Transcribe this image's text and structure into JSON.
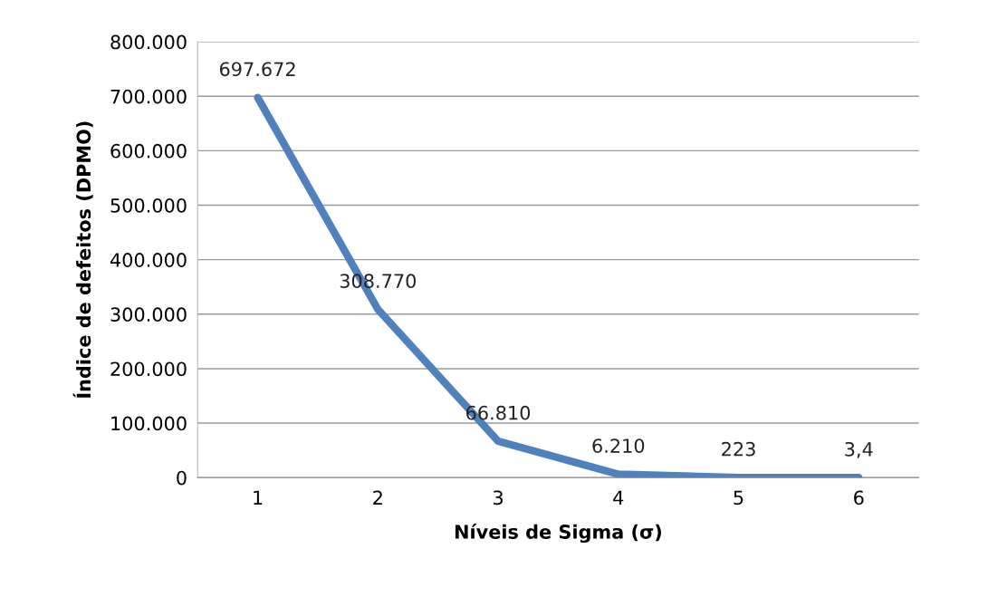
{
  "chart_data": {
    "type": "line",
    "xlabel": "Níveis de Sigma (σ)",
    "ylabel": "Índice de defeitos (DPMO)",
    "categories": [
      "1",
      "2",
      "3",
      "4",
      "5",
      "6"
    ],
    "series": [
      {
        "color": "#4f81bd",
        "values": [
          697672,
          308770,
          66810,
          6210,
          223,
          3.4
        ],
        "value_labels": [
          "697.672",
          "308.770",
          "66.810",
          "6.210",
          "223",
          "3,4"
        ]
      }
    ],
    "ylim": [
      0,
      800000
    ],
    "yticks": [
      {
        "value": 0,
        "label": "0"
      },
      {
        "value": 100000,
        "label": "100.000"
      },
      {
        "value": 200000,
        "label": "200.000"
      },
      {
        "value": 300000,
        "label": "300.000"
      },
      {
        "value": 400000,
        "label": "400.000"
      },
      {
        "value": 500000,
        "label": "500.000"
      },
      {
        "value": 600000,
        "label": "600.000"
      },
      {
        "value": 700000,
        "label": "700.000"
      },
      {
        "value": 800000,
        "label": "800.000"
      }
    ],
    "grid": "y",
    "line_style": "solid",
    "marker": "none"
  }
}
